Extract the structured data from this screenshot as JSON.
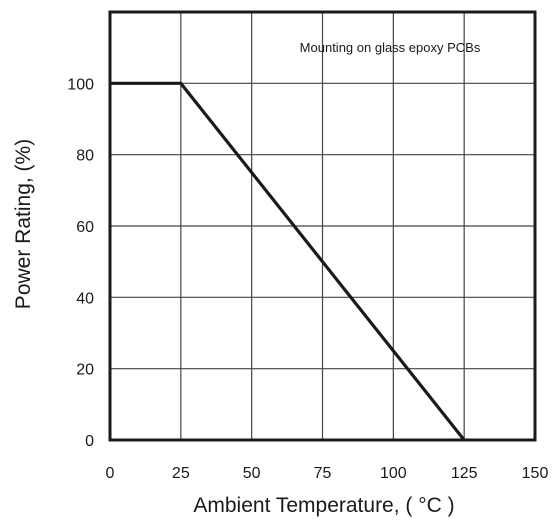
{
  "chart_data": {
    "type": "line",
    "annotation": "Mounting on glass epoxy PCBs",
    "xlabel": "Ambient Temperature, ( °C )",
    "ylabel": "Power Rating, (%)",
    "xlim": [
      0,
      150
    ],
    "ylim": [
      0,
      120
    ],
    "xticks": [
      0,
      25,
      50,
      75,
      100,
      125,
      150
    ],
    "yticks": [
      0,
      20,
      40,
      60,
      80,
      100
    ],
    "x_tick_labels": [
      "0",
      "25",
      "50",
      "75",
      "100",
      "125",
      "150"
    ],
    "y_tick_labels": [
      "0",
      "20",
      "40",
      "60",
      "80",
      "100"
    ],
    "grid": true,
    "series": [
      {
        "x": [
          0,
          25,
          125
        ],
        "y": [
          100,
          100,
          0
        ],
        "color": "#1a1a1a"
      }
    ]
  }
}
